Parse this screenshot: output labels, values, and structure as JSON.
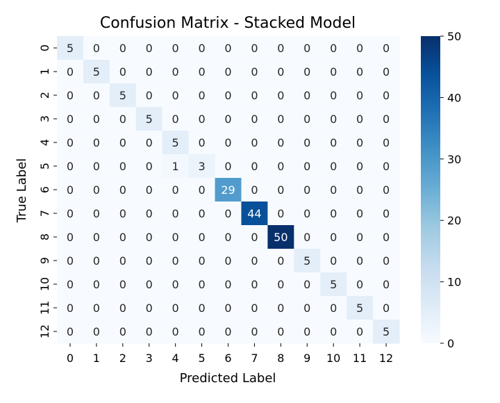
{
  "chart_data": {
    "type": "heatmap",
    "title": "Confusion Matrix - Stacked Model",
    "xlabel": "Predicted Label",
    "ylabel": "True Label",
    "x_categories": [
      "0",
      "1",
      "2",
      "3",
      "4",
      "5",
      "6",
      "7",
      "8",
      "9",
      "10",
      "11",
      "12"
    ],
    "y_categories": [
      "0",
      "1",
      "2",
      "3",
      "4",
      "5",
      "6",
      "7",
      "8",
      "9",
      "10",
      "11",
      "12"
    ],
    "matrix": [
      [
        5,
        0,
        0,
        0,
        0,
        0,
        0,
        0,
        0,
        0,
        0,
        0,
        0
      ],
      [
        0,
        5,
        0,
        0,
        0,
        0,
        0,
        0,
        0,
        0,
        0,
        0,
        0
      ],
      [
        0,
        0,
        5,
        0,
        0,
        0,
        0,
        0,
        0,
        0,
        0,
        0,
        0
      ],
      [
        0,
        0,
        0,
        5,
        0,
        0,
        0,
        0,
        0,
        0,
        0,
        0,
        0
      ],
      [
        0,
        0,
        0,
        0,
        5,
        0,
        0,
        0,
        0,
        0,
        0,
        0,
        0
      ],
      [
        0,
        0,
        0,
        0,
        1,
        3,
        0,
        0,
        0,
        0,
        0,
        0,
        0
      ],
      [
        0,
        0,
        0,
        0,
        0,
        0,
        29,
        0,
        0,
        0,
        0,
        0,
        0
      ],
      [
        0,
        0,
        0,
        0,
        0,
        0,
        0,
        44,
        0,
        0,
        0,
        0,
        0
      ],
      [
        0,
        0,
        0,
        0,
        0,
        0,
        0,
        0,
        50,
        0,
        0,
        0,
        0
      ],
      [
        0,
        0,
        0,
        0,
        0,
        0,
        0,
        0,
        0,
        5,
        0,
        0,
        0
      ],
      [
        0,
        0,
        0,
        0,
        0,
        0,
        0,
        0,
        0,
        0,
        5,
        0,
        0
      ],
      [
        0,
        0,
        0,
        0,
        0,
        0,
        0,
        0,
        0,
        0,
        0,
        5,
        0
      ],
      [
        0,
        0,
        0,
        0,
        0,
        0,
        0,
        0,
        0,
        0,
        0,
        0,
        5
      ]
    ],
    "colormap": "Blues",
    "colormap_stops": [
      "#f7fbff",
      "#deebf7",
      "#c6dbef",
      "#9ecae1",
      "#6baed6",
      "#4292c6",
      "#2171b5",
      "#08519c",
      "#08306b"
    ],
    "colorbar": {
      "range": [
        0,
        50
      ],
      "ticks": [
        "0",
        "10",
        "20",
        "30",
        "40",
        "50"
      ]
    },
    "annotation_text_color_dark": "#262626",
    "annotation_text_color_light": "#ffffff"
  }
}
